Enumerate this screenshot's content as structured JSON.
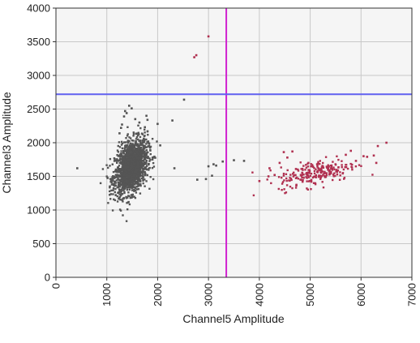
{
  "chart_data": {
    "type": "scatter",
    "title": "",
    "xlabel": "Channel5 Amplitude",
    "ylabel": "Channel3 Amplitude",
    "xlim": [
      0,
      7000
    ],
    "ylim": [
      0,
      4000
    ],
    "x_ticks": [
      "0",
      "1000",
      "2000",
      "3000",
      "4000",
      "5000",
      "6000",
      "7000"
    ],
    "y_ticks": [
      "0",
      "500",
      "1000",
      "1500",
      "2000",
      "2500",
      "3000",
      "3500",
      "4000"
    ],
    "x_tick_values": [
      0,
      1000,
      2000,
      3000,
      4000,
      5000,
      6000,
      7000
    ],
    "y_tick_values": [
      0,
      500,
      1000,
      1500,
      2000,
      2500,
      3000,
      3500,
      4000
    ],
    "grid": true,
    "threshold_lines": {
      "vertical": {
        "x": 3350,
        "color": "#d020d0"
      },
      "horizontal": {
        "y": 2720,
        "color": "#6060f0"
      }
    },
    "series": [
      {
        "color": "#555555",
        "cluster": {
          "center": [
            1480,
            1640
          ],
          "spread": [
            160,
            190
          ],
          "count": 1600
        },
        "points": [
          [
            420,
            1620
          ],
          [
            1060,
            1350
          ],
          [
            1080,
            1420
          ],
          [
            1100,
            1380
          ],
          [
            1250,
            2140
          ],
          [
            1280,
            2220
          ],
          [
            1300,
            2270
          ],
          [
            1340,
            2390
          ],
          [
            1360,
            2470
          ],
          [
            1390,
            2440
          ],
          [
            1440,
            2550
          ],
          [
            1490,
            2510
          ],
          [
            1560,
            2350
          ],
          [
            1640,
            2300
          ],
          [
            1750,
            2230
          ],
          [
            1780,
            2400
          ],
          [
            1800,
            2340
          ],
          [
            1850,
            1930
          ],
          [
            1900,
            1780
          ],
          [
            2000,
            2280
          ],
          [
            2050,
            1960
          ],
          [
            2290,
            2330
          ],
          [
            2330,
            1620
          ],
          [
            2520,
            2640
          ],
          [
            2780,
            1450
          ],
          [
            2950,
            1460
          ],
          [
            3000,
            1650
          ],
          [
            3070,
            1510
          ],
          [
            3100,
            1680
          ],
          [
            3150,
            1660
          ],
          [
            3280,
            1720
          ],
          [
            3500,
            1740
          ],
          [
            3700,
            1730
          ]
        ]
      },
      {
        "color": "#b03050",
        "cluster": {
          "center": [
            5150,
            1560
          ],
          "spread": [
            380,
            95
          ],
          "count": 230
        },
        "points": [
          [
            2720,
            3270
          ],
          [
            2760,
            3300
          ],
          [
            3000,
            3580
          ],
          [
            4000,
            1430
          ],
          [
            4180,
            1500
          ],
          [
            4200,
            1620
          ],
          [
            4300,
            1520
          ],
          [
            4400,
            1700
          ],
          [
            4480,
            1860
          ],
          [
            4550,
            1780
          ],
          [
            4650,
            1870
          ],
          [
            4720,
            1610
          ],
          [
            4850,
            1420
          ],
          [
            5700,
            1820
          ],
          [
            5800,
            1880
          ],
          [
            5900,
            1730
          ],
          [
            6050,
            1800
          ],
          [
            6120,
            1790
          ],
          [
            6250,
            1810
          ],
          [
            6300,
            1700
          ],
          [
            6330,
            1950
          ],
          [
            6500,
            2000
          ]
        ]
      }
    ]
  }
}
